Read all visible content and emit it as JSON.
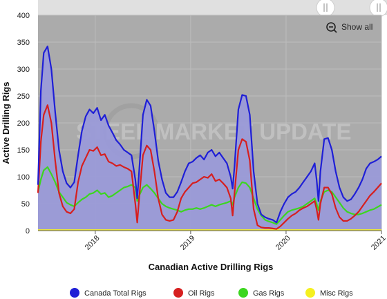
{
  "chart_data": {
    "type": "area",
    "title": "",
    "xlabel": "Canadian Active Drilling Rigs",
    "ylabel": "Active Drilling Rigs",
    "ylim": [
      0,
      400
    ],
    "y_ticks": [
      0,
      50,
      100,
      150,
      200,
      250,
      300,
      350,
      400
    ],
    "xlim": [
      2017.4,
      2021.0
    ],
    "x_ticks": [
      "2018",
      "2019",
      "2020",
      "2021"
    ],
    "x_tick_values": [
      2018,
      2019,
      2020,
      2021
    ],
    "grid": true,
    "legend_position": "bottom",
    "series": [
      {
        "name": "Canada Total Rigs",
        "color": "#1f1fd6",
        "points": [
          [
            2017.4,
            85
          ],
          [
            2017.43,
            260
          ],
          [
            2017.46,
            330
          ],
          [
            2017.5,
            342
          ],
          [
            2017.54,
            300
          ],
          [
            2017.58,
            220
          ],
          [
            2017.62,
            150
          ],
          [
            2017.66,
            110
          ],
          [
            2017.7,
            88
          ],
          [
            2017.74,
            80
          ],
          [
            2017.78,
            90
          ],
          [
            2017.82,
            140
          ],
          [
            2017.86,
            185
          ],
          [
            2017.9,
            212
          ],
          [
            2017.94,
            225
          ],
          [
            2017.98,
            218
          ],
          [
            2018.02,
            228
          ],
          [
            2018.06,
            205
          ],
          [
            2018.1,
            215
          ],
          [
            2018.14,
            195
          ],
          [
            2018.18,
            182
          ],
          [
            2018.22,
            168
          ],
          [
            2018.26,
            160
          ],
          [
            2018.3,
            150
          ],
          [
            2018.34,
            145
          ],
          [
            2018.38,
            140
          ],
          [
            2018.42,
            95
          ],
          [
            2018.44,
            60
          ],
          [
            2018.46,
            110
          ],
          [
            2018.5,
            215
          ],
          [
            2018.54,
            243
          ],
          [
            2018.58,
            232
          ],
          [
            2018.62,
            185
          ],
          [
            2018.66,
            130
          ],
          [
            2018.7,
            95
          ],
          [
            2018.74,
            70
          ],
          [
            2018.78,
            62
          ],
          [
            2018.82,
            62
          ],
          [
            2018.86,
            72
          ],
          [
            2018.9,
            90
          ],
          [
            2018.94,
            110
          ],
          [
            2018.98,
            125
          ],
          [
            2019.02,
            128
          ],
          [
            2019.06,
            135
          ],
          [
            2019.1,
            140
          ],
          [
            2019.14,
            132
          ],
          [
            2019.18,
            145
          ],
          [
            2019.22,
            150
          ],
          [
            2019.26,
            138
          ],
          [
            2019.3,
            145
          ],
          [
            2019.34,
            135
          ],
          [
            2019.38,
            125
          ],
          [
            2019.42,
            100
          ],
          [
            2019.44,
            78
          ],
          [
            2019.46,
            120
          ],
          [
            2019.5,
            225
          ],
          [
            2019.54,
            252
          ],
          [
            2019.58,
            250
          ],
          [
            2019.62,
            215
          ],
          [
            2019.66,
            110
          ],
          [
            2019.7,
            50
          ],
          [
            2019.74,
            30
          ],
          [
            2019.78,
            25
          ],
          [
            2019.82,
            22
          ],
          [
            2019.86,
            20
          ],
          [
            2019.9,
            15
          ],
          [
            2019.94,
            35
          ],
          [
            2019.98,
            50
          ],
          [
            2020.02,
            62
          ],
          [
            2020.06,
            68
          ],
          [
            2020.1,
            72
          ],
          [
            2020.14,
            80
          ],
          [
            2020.18,
            90
          ],
          [
            2020.22,
            100
          ],
          [
            2020.26,
            110
          ],
          [
            2020.3,
            125
          ],
          [
            2020.32,
            95
          ],
          [
            2020.34,
            55
          ],
          [
            2020.36,
            110
          ],
          [
            2020.4,
            170
          ],
          [
            2020.44,
            172
          ],
          [
            2020.48,
            150
          ],
          [
            2020.52,
            110
          ],
          [
            2020.56,
            80
          ],
          [
            2020.6,
            62
          ],
          [
            2020.64,
            55
          ],
          [
            2020.68,
            58
          ],
          [
            2020.72,
            68
          ],
          [
            2020.76,
            80
          ],
          [
            2020.8,
            95
          ],
          [
            2020.84,
            115
          ],
          [
            2020.88,
            125
          ],
          [
            2020.92,
            128
          ],
          [
            2020.96,
            132
          ],
          [
            2021.0,
            138
          ]
        ]
      },
      {
        "name": "Oil Rigs",
        "color": "#d61f1f",
        "points": [
          [
            2017.4,
            70
          ],
          [
            2017.43,
            165
          ],
          [
            2017.46,
            215
          ],
          [
            2017.5,
            233
          ],
          [
            2017.54,
            200
          ],
          [
            2017.58,
            130
          ],
          [
            2017.62,
            70
          ],
          [
            2017.66,
            45
          ],
          [
            2017.7,
            35
          ],
          [
            2017.74,
            32
          ],
          [
            2017.78,
            40
          ],
          [
            2017.82,
            90
          ],
          [
            2017.86,
            120
          ],
          [
            2017.9,
            135
          ],
          [
            2017.94,
            150
          ],
          [
            2017.98,
            148
          ],
          [
            2018.02,
            155
          ],
          [
            2018.06,
            140
          ],
          [
            2018.1,
            142
          ],
          [
            2018.14,
            128
          ],
          [
            2018.18,
            125
          ],
          [
            2018.22,
            120
          ],
          [
            2018.26,
            122
          ],
          [
            2018.3,
            118
          ],
          [
            2018.34,
            115
          ],
          [
            2018.38,
            110
          ],
          [
            2018.42,
            50
          ],
          [
            2018.44,
            15
          ],
          [
            2018.46,
            60
          ],
          [
            2018.5,
            140
          ],
          [
            2018.54,
            158
          ],
          [
            2018.58,
            150
          ],
          [
            2018.62,
            110
          ],
          [
            2018.66,
            60
          ],
          [
            2018.7,
            30
          ],
          [
            2018.74,
            20
          ],
          [
            2018.78,
            18
          ],
          [
            2018.82,
            20
          ],
          [
            2018.86,
            35
          ],
          [
            2018.9,
            60
          ],
          [
            2018.94,
            72
          ],
          [
            2018.98,
            80
          ],
          [
            2019.02,
            88
          ],
          [
            2019.06,
            90
          ],
          [
            2019.1,
            95
          ],
          [
            2019.14,
            100
          ],
          [
            2019.18,
            98
          ],
          [
            2019.22,
            105
          ],
          [
            2019.26,
            92
          ],
          [
            2019.3,
            95
          ],
          [
            2019.34,
            88
          ],
          [
            2019.38,
            80
          ],
          [
            2019.42,
            60
          ],
          [
            2019.44,
            28
          ],
          [
            2019.46,
            70
          ],
          [
            2019.5,
            150
          ],
          [
            2019.54,
            170
          ],
          [
            2019.58,
            165
          ],
          [
            2019.62,
            130
          ],
          [
            2019.66,
            40
          ],
          [
            2019.7,
            10
          ],
          [
            2019.74,
            6
          ],
          [
            2019.78,
            5
          ],
          [
            2019.82,
            5
          ],
          [
            2019.86,
            4
          ],
          [
            2019.9,
            3
          ],
          [
            2019.94,
            8
          ],
          [
            2019.98,
            15
          ],
          [
            2020.02,
            22
          ],
          [
            2020.06,
            28
          ],
          [
            2020.1,
            32
          ],
          [
            2020.14,
            38
          ],
          [
            2020.18,
            42
          ],
          [
            2020.22,
            45
          ],
          [
            2020.26,
            50
          ],
          [
            2020.3,
            55
          ],
          [
            2020.32,
            40
          ],
          [
            2020.34,
            20
          ],
          [
            2020.36,
            50
          ],
          [
            2020.4,
            80
          ],
          [
            2020.44,
            80
          ],
          [
            2020.48,
            68
          ],
          [
            2020.52,
            42
          ],
          [
            2020.56,
            25
          ],
          [
            2020.6,
            18
          ],
          [
            2020.64,
            18
          ],
          [
            2020.68,
            22
          ],
          [
            2020.72,
            28
          ],
          [
            2020.76,
            35
          ],
          [
            2020.8,
            45
          ],
          [
            2020.84,
            55
          ],
          [
            2020.88,
            65
          ],
          [
            2020.92,
            72
          ],
          [
            2020.96,
            80
          ],
          [
            2021.0,
            88
          ]
        ]
      },
      {
        "name": "Gas Rigs",
        "color": "#3cd61f",
        "points": [
          [
            2017.4,
            72
          ],
          [
            2017.43,
            95
          ],
          [
            2017.46,
            112
          ],
          [
            2017.5,
            118
          ],
          [
            2017.54,
            105
          ],
          [
            2017.58,
            90
          ],
          [
            2017.62,
            72
          ],
          [
            2017.66,
            62
          ],
          [
            2017.7,
            52
          ],
          [
            2017.74,
            48
          ],
          [
            2017.78,
            45
          ],
          [
            2017.82,
            52
          ],
          [
            2017.86,
            58
          ],
          [
            2017.9,
            62
          ],
          [
            2017.94,
            68
          ],
          [
            2017.98,
            70
          ],
          [
            2018.02,
            75
          ],
          [
            2018.06,
            68
          ],
          [
            2018.1,
            70
          ],
          [
            2018.14,
            62
          ],
          [
            2018.18,
            65
          ],
          [
            2018.22,
            70
          ],
          [
            2018.26,
            75
          ],
          [
            2018.3,
            80
          ],
          [
            2018.34,
            82
          ],
          [
            2018.38,
            85
          ],
          [
            2018.42,
            80
          ],
          [
            2018.44,
            55
          ],
          [
            2018.46,
            65
          ],
          [
            2018.5,
            80
          ],
          [
            2018.54,
            85
          ],
          [
            2018.58,
            78
          ],
          [
            2018.62,
            70
          ],
          [
            2018.66,
            60
          ],
          [
            2018.7,
            50
          ],
          [
            2018.74,
            45
          ],
          [
            2018.78,
            42
          ],
          [
            2018.82,
            40
          ],
          [
            2018.86,
            38
          ],
          [
            2018.9,
            35
          ],
          [
            2018.94,
            38
          ],
          [
            2018.98,
            40
          ],
          [
            2019.02,
            40
          ],
          [
            2019.06,
            42
          ],
          [
            2019.1,
            40
          ],
          [
            2019.14,
            42
          ],
          [
            2019.18,
            45
          ],
          [
            2019.22,
            48
          ],
          [
            2019.26,
            45
          ],
          [
            2019.3,
            48
          ],
          [
            2019.34,
            50
          ],
          [
            2019.38,
            52
          ],
          [
            2019.42,
            55
          ],
          [
            2019.44,
            48
          ],
          [
            2019.46,
            62
          ],
          [
            2019.5,
            80
          ],
          [
            2019.54,
            90
          ],
          [
            2019.58,
            88
          ],
          [
            2019.62,
            80
          ],
          [
            2019.66,
            60
          ],
          [
            2019.7,
            40
          ],
          [
            2019.74,
            28
          ],
          [
            2019.78,
            20
          ],
          [
            2019.82,
            17
          ],
          [
            2019.86,
            15
          ],
          [
            2019.9,
            12
          ],
          [
            2019.94,
            20
          ],
          [
            2019.98,
            28
          ],
          [
            2020.02,
            35
          ],
          [
            2020.06,
            38
          ],
          [
            2020.1,
            40
          ],
          [
            2020.14,
            42
          ],
          [
            2020.18,
            45
          ],
          [
            2020.22,
            50
          ],
          [
            2020.26,
            55
          ],
          [
            2020.3,
            60
          ],
          [
            2020.32,
            50
          ],
          [
            2020.34,
            38
          ],
          [
            2020.36,
            55
          ],
          [
            2020.4,
            72
          ],
          [
            2020.44,
            75
          ],
          [
            2020.48,
            72
          ],
          [
            2020.52,
            62
          ],
          [
            2020.56,
            52
          ],
          [
            2020.6,
            42
          ],
          [
            2020.64,
            35
          ],
          [
            2020.68,
            32
          ],
          [
            2020.72,
            30
          ],
          [
            2020.76,
            30
          ],
          [
            2020.8,
            32
          ],
          [
            2020.84,
            35
          ],
          [
            2020.88,
            38
          ],
          [
            2020.92,
            40
          ],
          [
            2020.96,
            44
          ],
          [
            2021.0,
            48
          ]
        ]
      },
      {
        "name": "Misc Rigs",
        "color": "#f5f01f",
        "points": [
          [
            2017.4,
            1
          ],
          [
            2018.0,
            1
          ],
          [
            2018.5,
            1
          ],
          [
            2019.0,
            1
          ],
          [
            2019.5,
            1
          ],
          [
            2020.0,
            1
          ],
          [
            2020.5,
            1
          ],
          [
            2021.0,
            1
          ]
        ]
      }
    ],
    "watermark": "STEEL MARKET UPDATE"
  },
  "toolbar": {
    "show_all_label": "Show all",
    "zoom_icon": "zoom-out-icon",
    "handle_icon": "scroll-handle-icon"
  },
  "colors": {
    "plot_background": "#ababab",
    "area_fill": "#9a9ad8",
    "navigator_background": "#e0e0e0"
  }
}
